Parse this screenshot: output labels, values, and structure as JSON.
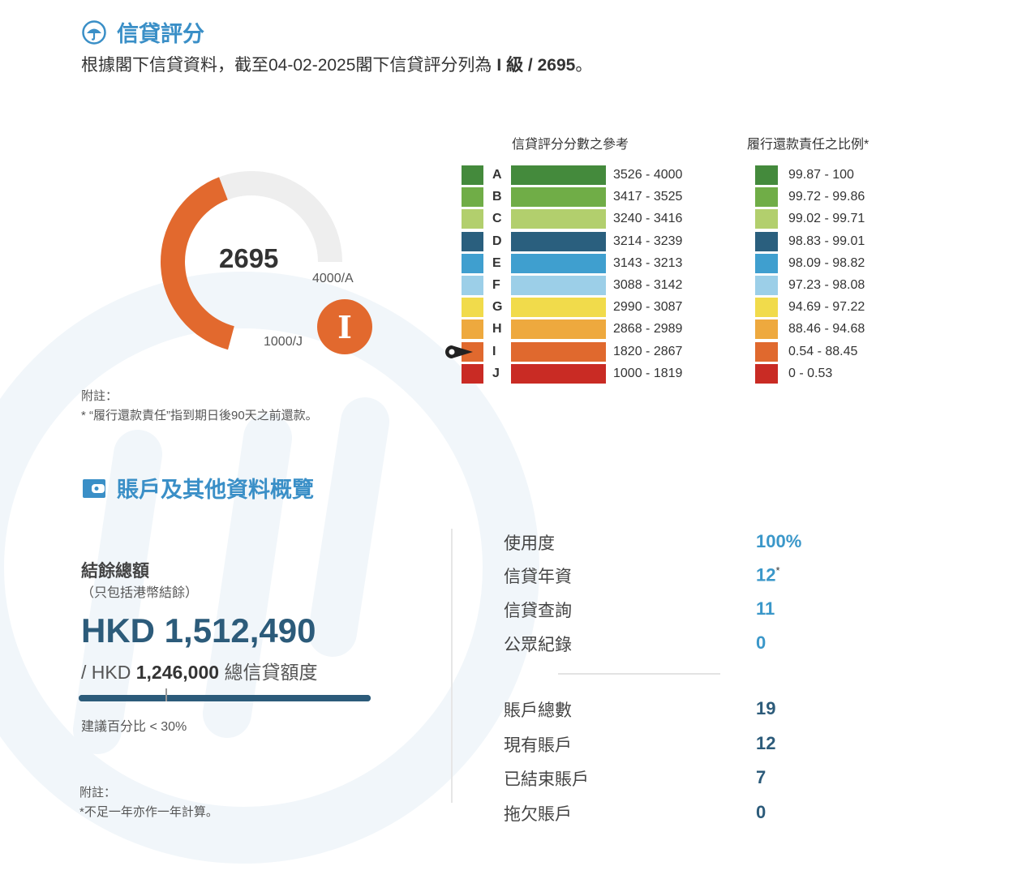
{
  "colors": {
    "accent": "#3a8fc7",
    "dark_blue": "#2c5b7a",
    "gauge_orange": "#e2692e",
    "gauge_track": "#eeeeee"
  },
  "credit_score": {
    "title": "信貸評分",
    "icon": "umbrella-icon",
    "intro_text": "根據閣下信貸資料，截至04-02-2025閣下信貸評分列為",
    "intro_grade": "I 級 / 2695",
    "intro_end": "。",
    "score": "2695",
    "score_value": 2695,
    "score_min": 1000,
    "score_max": 4000,
    "max_label": "4000/A",
    "min_label": "1000/J",
    "grade": "I",
    "current_grade": "I",
    "ref_header": "信貸評分分數之參考",
    "pct_header": "履行還款責任之比例*",
    "grades": [
      {
        "letter": "A",
        "range": "3526 - 4000",
        "pct": "99.87 - 100",
        "color": "#448a3c"
      },
      {
        "letter": "B",
        "range": "3417 - 3525",
        "pct": "99.72 - 99.86",
        "color": "#70ad47"
      },
      {
        "letter": "C",
        "range": "3240 - 3416",
        "pct": "99.02 - 99.71",
        "color": "#b2cf6d"
      },
      {
        "letter": "D",
        "range": "3214 - 3239",
        "pct": "98.83 - 99.01",
        "color": "#2a5f7e"
      },
      {
        "letter": "E",
        "range": "3143 - 3213",
        "pct": "98.09 - 98.82",
        "color": "#3f9fcf"
      },
      {
        "letter": "F",
        "range": "3088 - 3142",
        "pct": "97.23 - 98.08",
        "color": "#9ccfe8"
      },
      {
        "letter": "G",
        "range": "2990 - 3087",
        "pct": "94.69 - 97.22",
        "color": "#f1db4b"
      },
      {
        "letter": "H",
        "range": "2868 - 2989",
        "pct": "88.46 - 94.68",
        "color": "#eea93e"
      },
      {
        "letter": "I",
        "range": "1820 - 2867",
        "pct": "0.54 - 88.45",
        "color": "#e0692e"
      },
      {
        "letter": "J",
        "range": "1000 - 1819",
        "pct": "0 - 0.53",
        "color": "#c92b24"
      }
    ],
    "note_title": "附註：",
    "note_text": "* “履行還款責任”指到期日後90天之前還款。"
  },
  "accounts": {
    "title": "賬戶及其他資料概覽",
    "icon": "wallet-icon",
    "balance_label": "結餘總額",
    "balance_sub": "（只包括港幣結餘）",
    "balance_amount": "HKD 1,512,490",
    "limit_prefix": "/ HKD",
    "limit_amount": "1,246,000",
    "limit_suffix": "總信貸額度",
    "utilization_fraction": 1.0,
    "suggestion": "建議百分比 < 30%",
    "note_title": "附註：",
    "note_text": "*不足一年亦作一年計算。",
    "stats_top": [
      {
        "label": "使用度",
        "value": "100%"
      },
      {
        "label": "信貸年資",
        "value": "12",
        "sup": "*"
      },
      {
        "label": "信貸查詢",
        "value": "11"
      },
      {
        "label": "公眾紀錄",
        "value": "0"
      }
    ],
    "stats_bottom": [
      {
        "label": "賬戶總數",
        "value": "19"
      },
      {
        "label": "現有賬戶",
        "value": "12"
      },
      {
        "label": "已結束賬戶",
        "value": "7"
      },
      {
        "label": "拖欠賬戶",
        "value": "0"
      }
    ]
  }
}
